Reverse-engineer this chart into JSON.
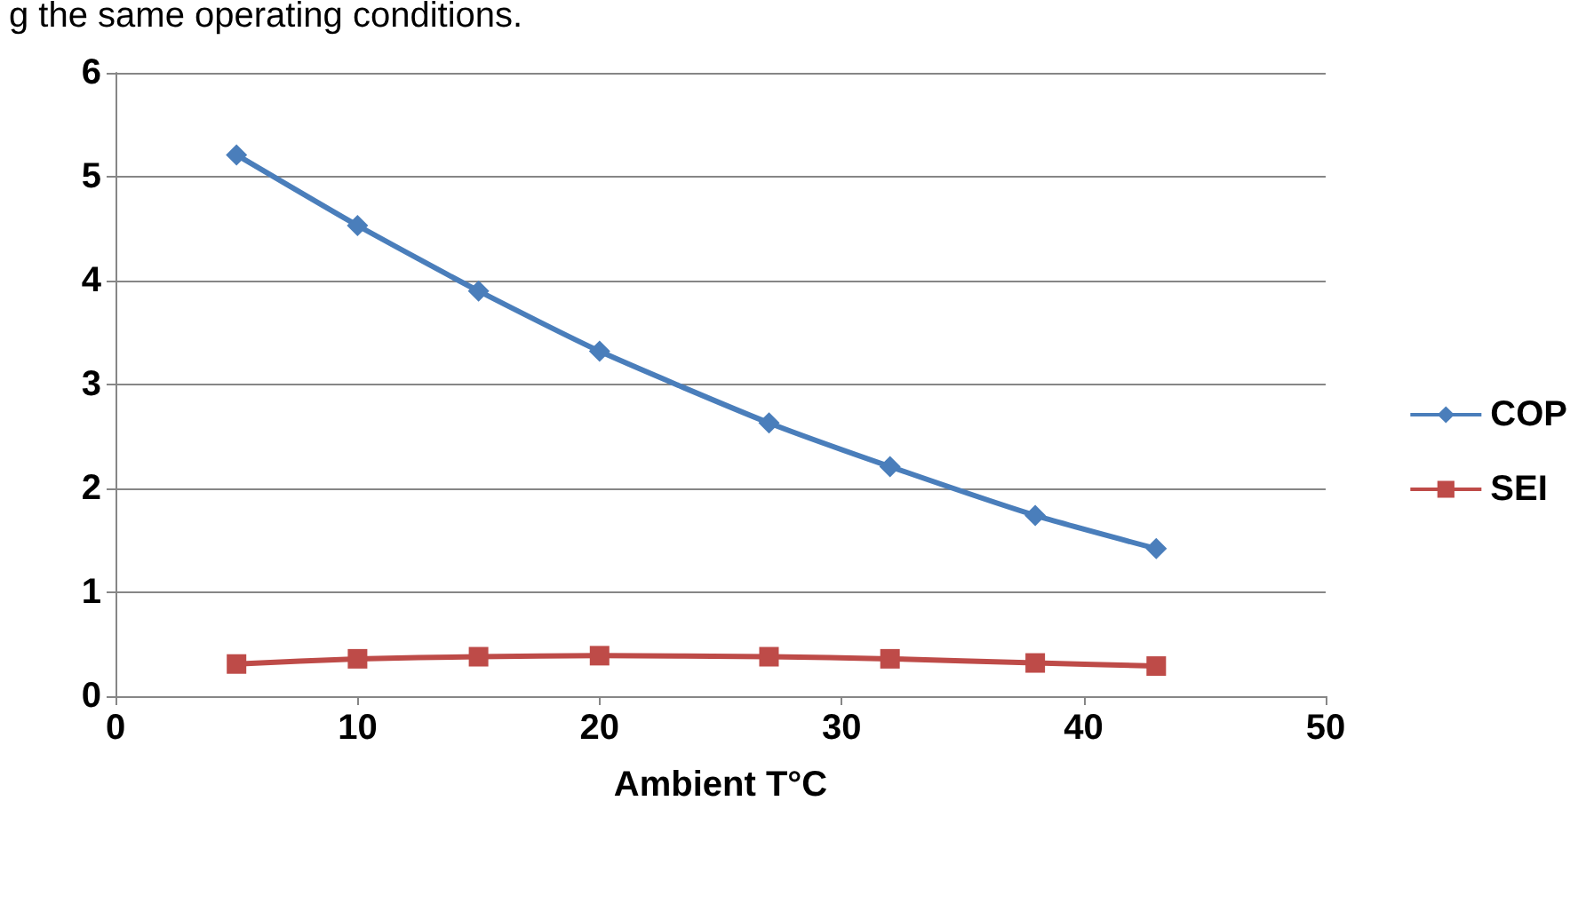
{
  "chart_data": {
    "type": "line",
    "xlabel": "Ambient T°C",
    "annotations": [
      "g the same operating conditions."
    ],
    "x": [
      5,
      10,
      15,
      20,
      27,
      32,
      38,
      43
    ],
    "series": [
      {
        "name": "COP",
        "color": "#4a7ebb",
        "marker": "diamond",
        "values": [
          5.21,
          4.53,
          3.9,
          3.32,
          2.63,
          2.21,
          1.74,
          1.42
        ]
      },
      {
        "name": "SEI",
        "color": "#be4b48",
        "marker": "square",
        "values": [
          0.31,
          0.36,
          0.38,
          0.39,
          0.38,
          0.36,
          0.32,
          0.29
        ]
      }
    ],
    "xlim": [
      0,
      50
    ],
    "xticks": [
      0,
      10,
      20,
      30,
      40,
      50
    ],
    "ylim": [
      0,
      6
    ],
    "yticks": [
      0,
      1,
      2,
      3,
      4,
      5,
      6
    ],
    "grid": "y",
    "legend": "right"
  }
}
